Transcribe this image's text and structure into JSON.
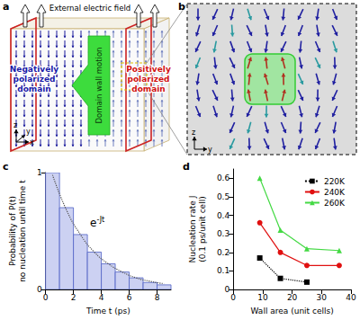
{
  "panels": {
    "a": {
      "label": "a",
      "top_text": "External electric field",
      "left_text": "Negatively polarized domain",
      "middle_text": "Domain wall motion",
      "right_text": "Positively polarized domain",
      "axes": [
        "z",
        "x",
        "y"
      ]
    },
    "b": {
      "label": "b",
      "axes": [
        "z",
        "y"
      ]
    }
  },
  "chart_data": [
    {
      "panel": "c",
      "type": "histogram",
      "bins": [
        0,
        1,
        2,
        3,
        4,
        5,
        6,
        7,
        8,
        9
      ],
      "counts": [
        1.0,
        0.7,
        0.47,
        0.32,
        0.22,
        0.15,
        0.1,
        0.06,
        0.04
      ],
      "color": "#c3c9f0",
      "xlabel": "Time t (ps)",
      "ylabel": [
        "Probability of P(t)",
        "no nucleation until time t"
      ],
      "xlim": [
        0,
        9
      ],
      "xticks": [
        0,
        2,
        4,
        6,
        8
      ],
      "ylim": [
        0,
        1
      ],
      "yticks": [
        0,
        1
      ],
      "grid": false,
      "curve": {
        "type": "line",
        "line_style": "dotted",
        "color": "#555555",
        "x": [
          0.5,
          1.5,
          2.5,
          3.5,
          4.5,
          5.5,
          6.5,
          7.5,
          8.5
        ],
        "values": [
          0.98,
          0.68,
          0.47,
          0.32,
          0.22,
          0.15,
          0.1,
          0.07,
          0.05
        ]
      },
      "annotation": {
        "text": "e",
        "superscript": "-Jt"
      }
    },
    {
      "panel": "d",
      "type": "line",
      "xlabel": "Wall area (unit cells)",
      "ylabel": [
        "Nucleation rate J",
        "(0.1 ps/unit cell)"
      ],
      "x": [
        9,
        16,
        25,
        36
      ],
      "xlim": [
        0,
        40
      ],
      "xticks": [
        0,
        10,
        20,
        30,
        40
      ],
      "ylim": [
        0,
        0.65
      ],
      "yticks": [
        0,
        0.1,
        0.2,
        0.3,
        0.4,
        0.5,
        0.6
      ],
      "grid": false,
      "legend": "upper right",
      "series": [
        {
          "name": "220K",
          "color": "#000000",
          "marker": "square",
          "line_style": "dotted",
          "values": [
            0.17,
            0.06,
            0.04,
            null
          ]
        },
        {
          "name": "240K",
          "color": "#e01010",
          "marker": "circle",
          "line_style": "solid",
          "values": [
            0.36,
            0.2,
            0.13,
            0.13
          ]
        },
        {
          "name": "260K",
          "color": "#44d944",
          "marker": "triangle",
          "line_style": "solid",
          "values": [
            0.6,
            0.32,
            0.22,
            0.21
          ]
        }
      ]
    }
  ]
}
